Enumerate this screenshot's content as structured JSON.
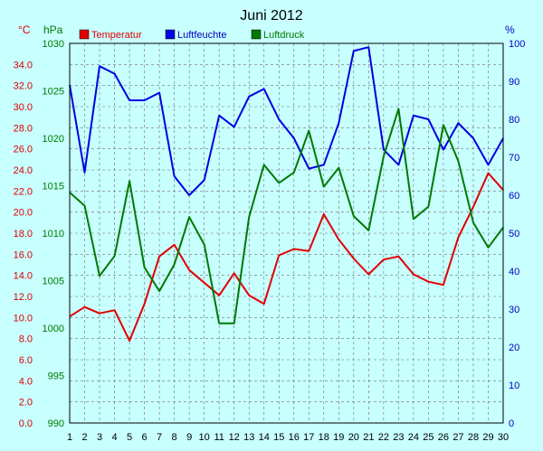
{
  "chart_data": {
    "type": "line",
    "title": "Juni 2012",
    "units": {
      "left_temp": "°C",
      "left_pressure": "hPa",
      "right_humidity": "%"
    },
    "x": [
      1,
      2,
      3,
      4,
      5,
      6,
      7,
      8,
      9,
      10,
      11,
      12,
      13,
      14,
      15,
      16,
      17,
      18,
      19,
      20,
      21,
      22,
      23,
      24,
      25,
      26,
      27,
      28,
      29,
      30
    ],
    "x_ticks": [
      "1",
      "2",
      "3",
      "4",
      "5",
      "6",
      "7",
      "8",
      "9",
      "10",
      "11",
      "12",
      "13",
      "14",
      "15",
      "16",
      "17",
      "18",
      "19",
      "20",
      "21",
      "22",
      "23",
      "24",
      "25",
      "26",
      "27",
      "28",
      "29",
      "30"
    ],
    "temp_axis": {
      "min": 0,
      "max": 36,
      "ticks": [
        "0.0",
        "2.0",
        "4.0",
        "6.0",
        "8.0",
        "10.0",
        "12.0",
        "14.0",
        "16.0",
        "18.0",
        "20.0",
        "22.0",
        "24.0",
        "26.0",
        "28.0",
        "30.0",
        "32.0",
        "34.0"
      ]
    },
    "pressure_axis": {
      "min": 990,
      "max": 1030,
      "ticks": [
        "990",
        "995",
        "1000",
        "1005",
        "1010",
        "1015",
        "1020",
        "1025",
        "1030"
      ]
    },
    "humidity_axis": {
      "min": 0,
      "max": 100,
      "ticks": [
        "0",
        "10",
        "20",
        "30",
        "40",
        "50",
        "60",
        "70",
        "80",
        "90",
        "100"
      ]
    },
    "series": [
      {
        "name": "Temperatur",
        "axis": "temp",
        "color": "#e00000",
        "values": [
          10.1,
          11.0,
          10.4,
          10.7,
          7.8,
          11.3,
          15.8,
          16.9,
          14.5,
          13.3,
          12.1,
          14.2,
          12.1,
          11.3,
          15.9,
          16.5,
          16.3,
          19.8,
          17.4,
          15.6,
          14.1,
          15.5,
          15.8,
          14.1,
          13.4,
          13.1,
          17.6,
          20.5,
          23.7,
          22.1
        ]
      },
      {
        "name": "Luftfeuchte",
        "axis": "humidity",
        "color": "#0000e0",
        "values": [
          89,
          66,
          94,
          92,
          85,
          85,
          87,
          65,
          60,
          64,
          81,
          78,
          86,
          88,
          80,
          75,
          67,
          68,
          79,
          98,
          99,
          72,
          68,
          81,
          80,
          72,
          79,
          75,
          68,
          75
        ]
      },
      {
        "name": "Luftdruck",
        "axis": "pressure",
        "color": "#007a00",
        "values": [
          1014.3,
          1012.9,
          1005.5,
          1007.6,
          1015.5,
          1006.4,
          1003.9,
          1006.7,
          1011.7,
          1008.8,
          1000.5,
          1000.5,
          1011.7,
          1017.2,
          1015.3,
          1016.4,
          1020.8,
          1014.9,
          1016.9,
          1011.8,
          1010.3,
          1018.1,
          1023.1,
          1011.5,
          1012.8,
          1021.4,
          1017.6,
          1011.1,
          1008.5,
          1010.6
        ]
      }
    ],
    "grid": true,
    "legend_position": "top-left"
  }
}
